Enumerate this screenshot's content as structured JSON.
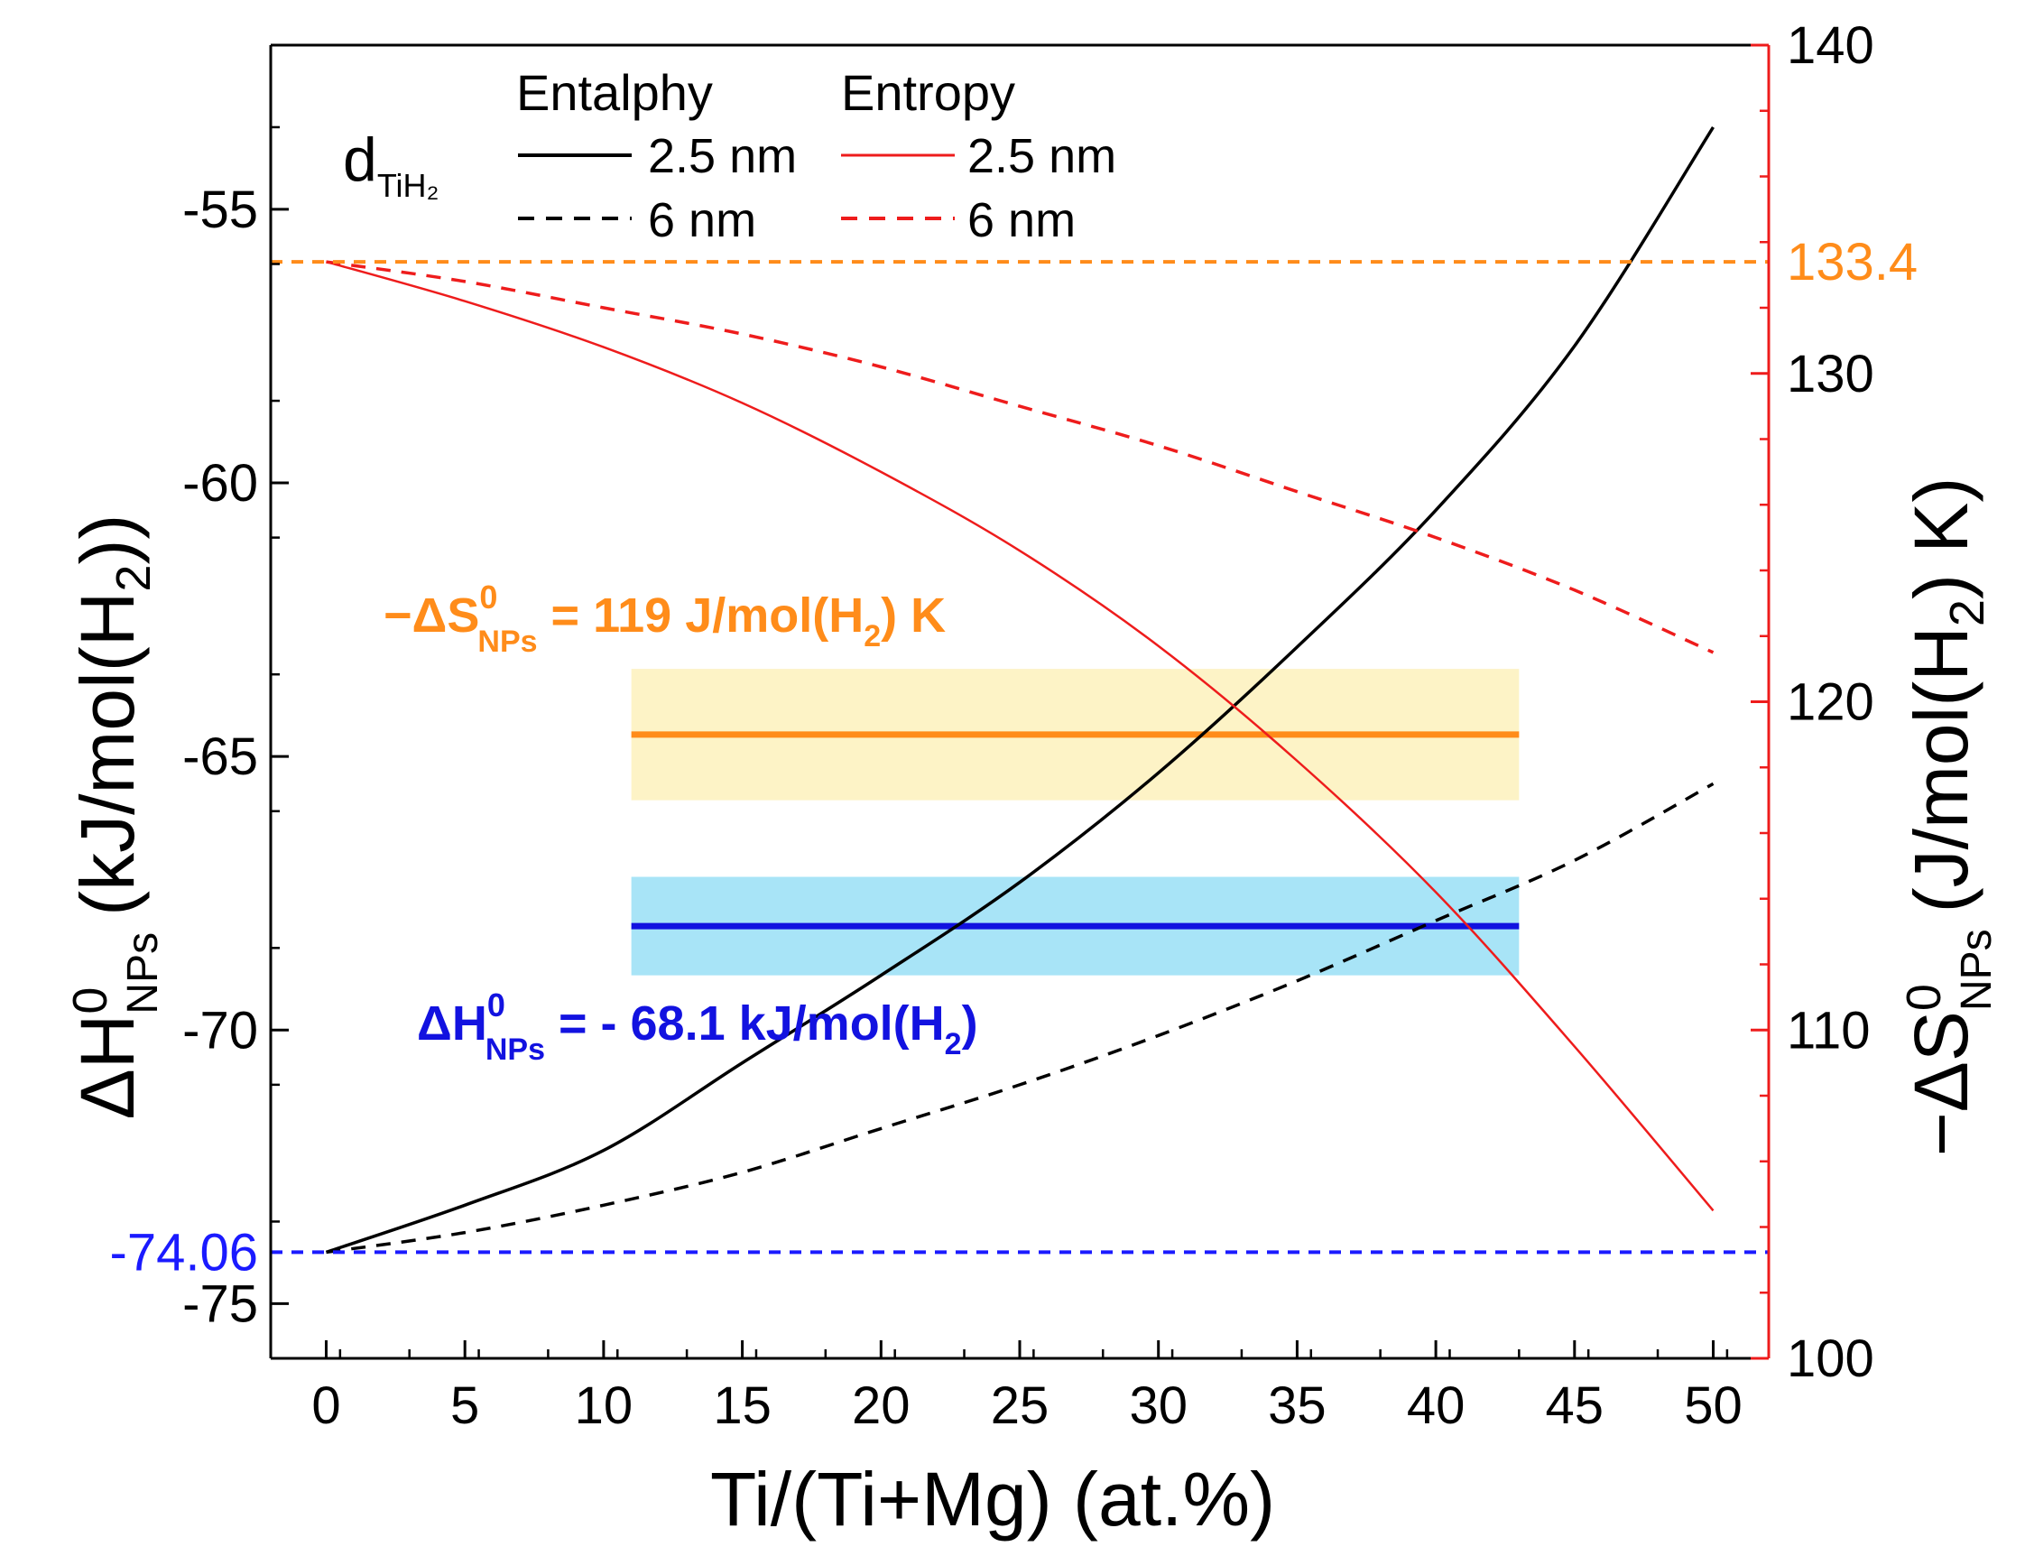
{
  "chart_data": {
    "type": "line",
    "xlabel": "Ti/(Ti+Mg) (at.%)",
    "ylabel_left": {
      "main": "ΔH",
      "sup": "0",
      "sub": "NPs",
      "rest": "(kJ/mol(H",
      "sub2": "2",
      "end": "))"
    },
    "ylabel_right": {
      "main": "−ΔS",
      "sup": "0",
      "sub": "NPs",
      "rest": "(J/mol(H",
      "sub2": "2",
      "end": ") K)"
    },
    "xlim": [
      -2,
      52
    ],
    "ylim_left": [
      -76,
      -52
    ],
    "ylim_right": [
      100,
      140
    ],
    "x_ticks": [
      0,
      5,
      10,
      15,
      20,
      25,
      30,
      35,
      40,
      45,
      50
    ],
    "x_tick_labels": [
      "0",
      "5",
      "10",
      "15",
      "20",
      "25",
      "30",
      "35",
      "40",
      "45",
      "50"
    ],
    "y_left_ticks": [
      -55,
      -60,
      -65,
      -70,
      -75
    ],
    "y_left_tick_labels": [
      "-55",
      "-60",
      "-65",
      "-70",
      "-75"
    ],
    "y_right_ticks": [
      100,
      110,
      120,
      130,
      140
    ],
    "y_right_tick_labels": [
      "100",
      "110",
      "120",
      "130",
      "140"
    ],
    "legend": {
      "group_label": "d",
      "group_label_sub": "TiH₂",
      "enthalpy_header": "Entalphy",
      "entropy_header": "Entropy",
      "item_25": "2.5 nm",
      "item_6": "6 nm"
    },
    "series": [
      {
        "name": "Enthalpy 2.5 nm",
        "axis": "left",
        "style": "solid",
        "color": "#000000",
        "x": [
          0,
          5,
          10,
          15,
          20,
          25,
          30,
          35,
          40,
          45,
          50
        ],
        "values": [
          -74.06,
          -73.2,
          -72.2,
          -70.6,
          -69.0,
          -67.3,
          -65.3,
          -63.0,
          -60.5,
          -57.5,
          -53.5
        ]
      },
      {
        "name": "Enthalpy 6 nm",
        "axis": "left",
        "style": "dashed",
        "color": "#000000",
        "x": [
          0,
          5,
          10,
          15,
          20,
          25,
          30,
          35,
          40,
          45,
          50
        ],
        "values": [
          -74.06,
          -73.7,
          -73.2,
          -72.6,
          -71.8,
          -71.0,
          -70.1,
          -69.1,
          -68.0,
          -66.9,
          -65.5
        ]
      },
      {
        "name": "Entropy 2.5 nm",
        "axis": "right",
        "style": "solid",
        "color": "#ee1c1c",
        "x": [
          0,
          5,
          10,
          15,
          20,
          25,
          30,
          35,
          40,
          45,
          50
        ],
        "values": [
          133.4,
          132.2,
          130.8,
          129.1,
          127.0,
          124.6,
          121.7,
          118.2,
          114.2,
          109.5,
          104.5
        ]
      },
      {
        "name": "Entropy 6 nm",
        "axis": "right",
        "style": "dashed",
        "color": "#ee1c1c",
        "x": [
          0,
          5,
          10,
          15,
          20,
          25,
          30,
          35,
          40,
          45,
          50
        ],
        "values": [
          133.4,
          132.8,
          132.0,
          131.2,
          130.2,
          129.0,
          127.8,
          126.4,
          125.0,
          123.4,
          121.5
        ]
      }
    ],
    "reference_lines": [
      {
        "name": "h0-bulk",
        "axis": "left",
        "value": -74.06,
        "label": "-74.06",
        "color": "#1a1aff"
      },
      {
        "name": "s0-bulk",
        "axis": "right",
        "value": 133.4,
        "label": "133.4",
        "color": "#ff8c1a"
      }
    ],
    "bands": [
      {
        "name": "entropy-band",
        "axis": "right",
        "x_from": 11,
        "x_to": 43,
        "y_from": 117,
        "y_to": 121,
        "center": 119,
        "fill": "#fdf3c6",
        "line_color": "#ff8c1a"
      },
      {
        "name": "enthalpy-band",
        "axis": "left",
        "x_from": 11,
        "x_to": 43,
        "y_from": -69.0,
        "y_to": -67.2,
        "center": -68.1,
        "fill": "#a8e4f7",
        "line_color": "#1212e0"
      }
    ],
    "annotations": {
      "entropy": {
        "a": "−ΔS",
        "sup": "0",
        "sub": "NPs",
        "b": " = 119 J/mol(H",
        "sub2": "2",
        "c": ") K",
        "color": "#ff8c1a"
      },
      "enthalpy": {
        "a": "ΔH",
        "sup": "0",
        "sub": "NPs",
        "b": " = - 68.1 kJ/mol(H",
        "sub2": "2",
        "c": ")",
        "color": "#1212e0"
      }
    }
  }
}
